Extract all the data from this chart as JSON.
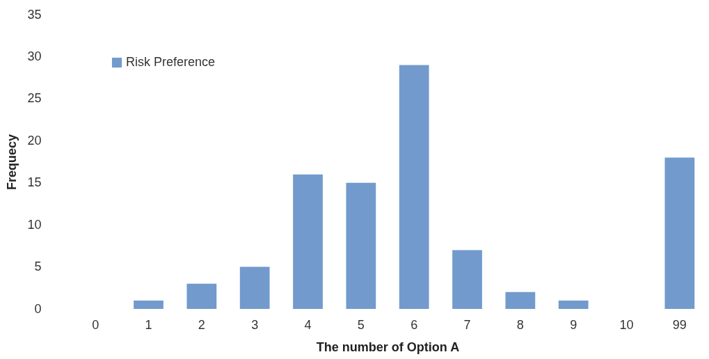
{
  "chart_data": {
    "type": "bar",
    "xlabel": "The number of Option A",
    "ylabel": "Frequecy",
    "categories": [
      "0",
      "1",
      "2",
      "3",
      "4",
      "5",
      "6",
      "7",
      "8",
      "9",
      "10",
      "99"
    ],
    "series": [
      {
        "name": "Risk Preference",
        "color": "#729acc",
        "values": [
          0,
          1,
          3,
          5,
          16,
          15,
          29,
          7,
          2,
          1,
          0,
          18
        ]
      }
    ],
    "ylim": [
      0,
      35
    ],
    "yticks": [
      0,
      5,
      10,
      15,
      20,
      25,
      30,
      35
    ],
    "grid": false,
    "legend": "top left"
  }
}
